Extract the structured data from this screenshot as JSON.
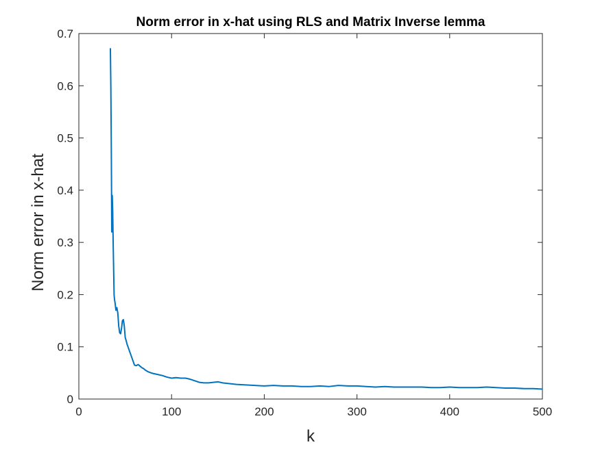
{
  "chart_data": {
    "type": "line",
    "title": "Norm error in x-hat using RLS and Matrix Inverse lemma",
    "xlabel": "k",
    "ylabel": "Norm error in x-hat",
    "xlim": [
      0,
      500
    ],
    "ylim": [
      0,
      0.7
    ],
    "xticks": [
      0,
      100,
      200,
      300,
      400,
      500
    ],
    "yticks": [
      0,
      0.1,
      0.2,
      0.3,
      0.4,
      0.5,
      0.6,
      0.7
    ],
    "xtick_labels": [
      "0",
      "100",
      "200",
      "300",
      "400",
      "500"
    ],
    "ytick_labels": [
      "0",
      "0.1",
      "0.2",
      "0.3",
      "0.4",
      "0.5",
      "0.6",
      "0.7"
    ],
    "grid": false,
    "line_color": "#0072BD",
    "axes_color": "#262626",
    "series": [
      {
        "x": [
          34,
          34.5,
          35,
          35.5,
          36,
          36.5,
          37,
          37.5,
          38,
          38.5,
          39,
          40,
          41,
          42,
          43,
          44,
          45,
          46,
          47,
          48,
          49,
          50,
          51,
          52,
          53,
          54,
          55,
          56,
          57,
          58,
          59,
          60,
          62,
          64,
          66,
          68,
          70,
          72,
          75,
          78,
          80,
          85,
          90,
          95,
          100,
          105,
          110,
          115,
          120,
          125,
          130,
          135,
          140,
          145,
          150,
          155,
          160,
          165,
          170,
          180,
          190,
          200,
          210,
          220,
          230,
          240,
          250,
          260,
          270,
          280,
          290,
          300,
          310,
          320,
          330,
          340,
          350,
          360,
          370,
          380,
          390,
          400,
          410,
          420,
          430,
          440,
          450,
          460,
          470,
          480,
          490,
          500
        ],
        "y": [
          0.672,
          0.6,
          0.48,
          0.32,
          0.39,
          0.36,
          0.3,
          0.25,
          0.2,
          0.19,
          0.185,
          0.17,
          0.175,
          0.165,
          0.14,
          0.127,
          0.125,
          0.135,
          0.15,
          0.152,
          0.14,
          0.118,
          0.112,
          0.105,
          0.1,
          0.095,
          0.09,
          0.085,
          0.08,
          0.075,
          0.07,
          0.065,
          0.064,
          0.066,
          0.063,
          0.06,
          0.058,
          0.055,
          0.052,
          0.05,
          0.049,
          0.047,
          0.045,
          0.042,
          0.04,
          0.041,
          0.04,
          0.04,
          0.038,
          0.035,
          0.032,
          0.031,
          0.031,
          0.032,
          0.033,
          0.031,
          0.03,
          0.029,
          0.028,
          0.027,
          0.026,
          0.025,
          0.026,
          0.025,
          0.025,
          0.024,
          0.024,
          0.025,
          0.024,
          0.026,
          0.025,
          0.025,
          0.024,
          0.023,
          0.024,
          0.023,
          0.023,
          0.023,
          0.023,
          0.022,
          0.022,
          0.023,
          0.022,
          0.022,
          0.022,
          0.023,
          0.022,
          0.021,
          0.021,
          0.02,
          0.02,
          0.019
        ]
      }
    ]
  }
}
